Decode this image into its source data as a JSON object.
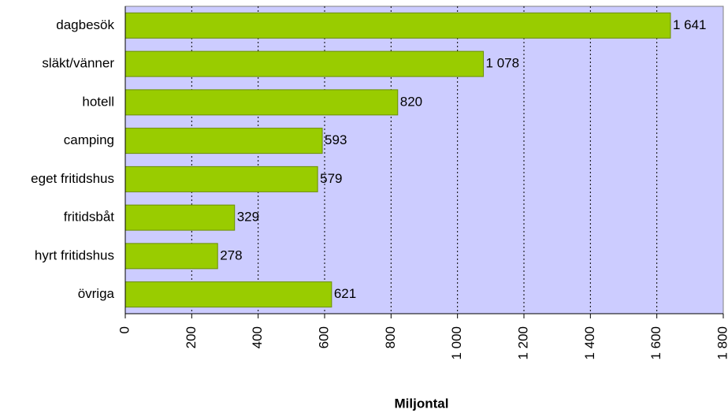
{
  "chart_data": {
    "type": "bar",
    "orientation": "horizontal",
    "x_label": "Miljontal",
    "categories": [
      "dagbesök",
      "släkt/vänner",
      "hotell",
      "camping",
      "eget fritidshus",
      "fritidsbåt",
      "hyrt fritidshus",
      "övriga"
    ],
    "values": [
      1641,
      1078,
      820,
      593,
      579,
      329,
      278,
      621
    ],
    "value_labels": [
      "1 641",
      "1 078",
      "820",
      "593",
      "579",
      "329",
      "278",
      "621"
    ],
    "color": "#99cc00",
    "xlim": [
      0,
      1800
    ],
    "xticks": [
      0,
      200,
      400,
      600,
      800,
      {
        "value": 1000,
        "label": "1 000"
      },
      {
        "value": 1200,
        "label": "1 200"
      },
      {
        "value": 1400,
        "label": "1 400"
      },
      {
        "value": 1600,
        "label": "1 600"
      },
      {
        "value": 1800,
        "label": "1 800"
      }
    ],
    "grid": true
  }
}
